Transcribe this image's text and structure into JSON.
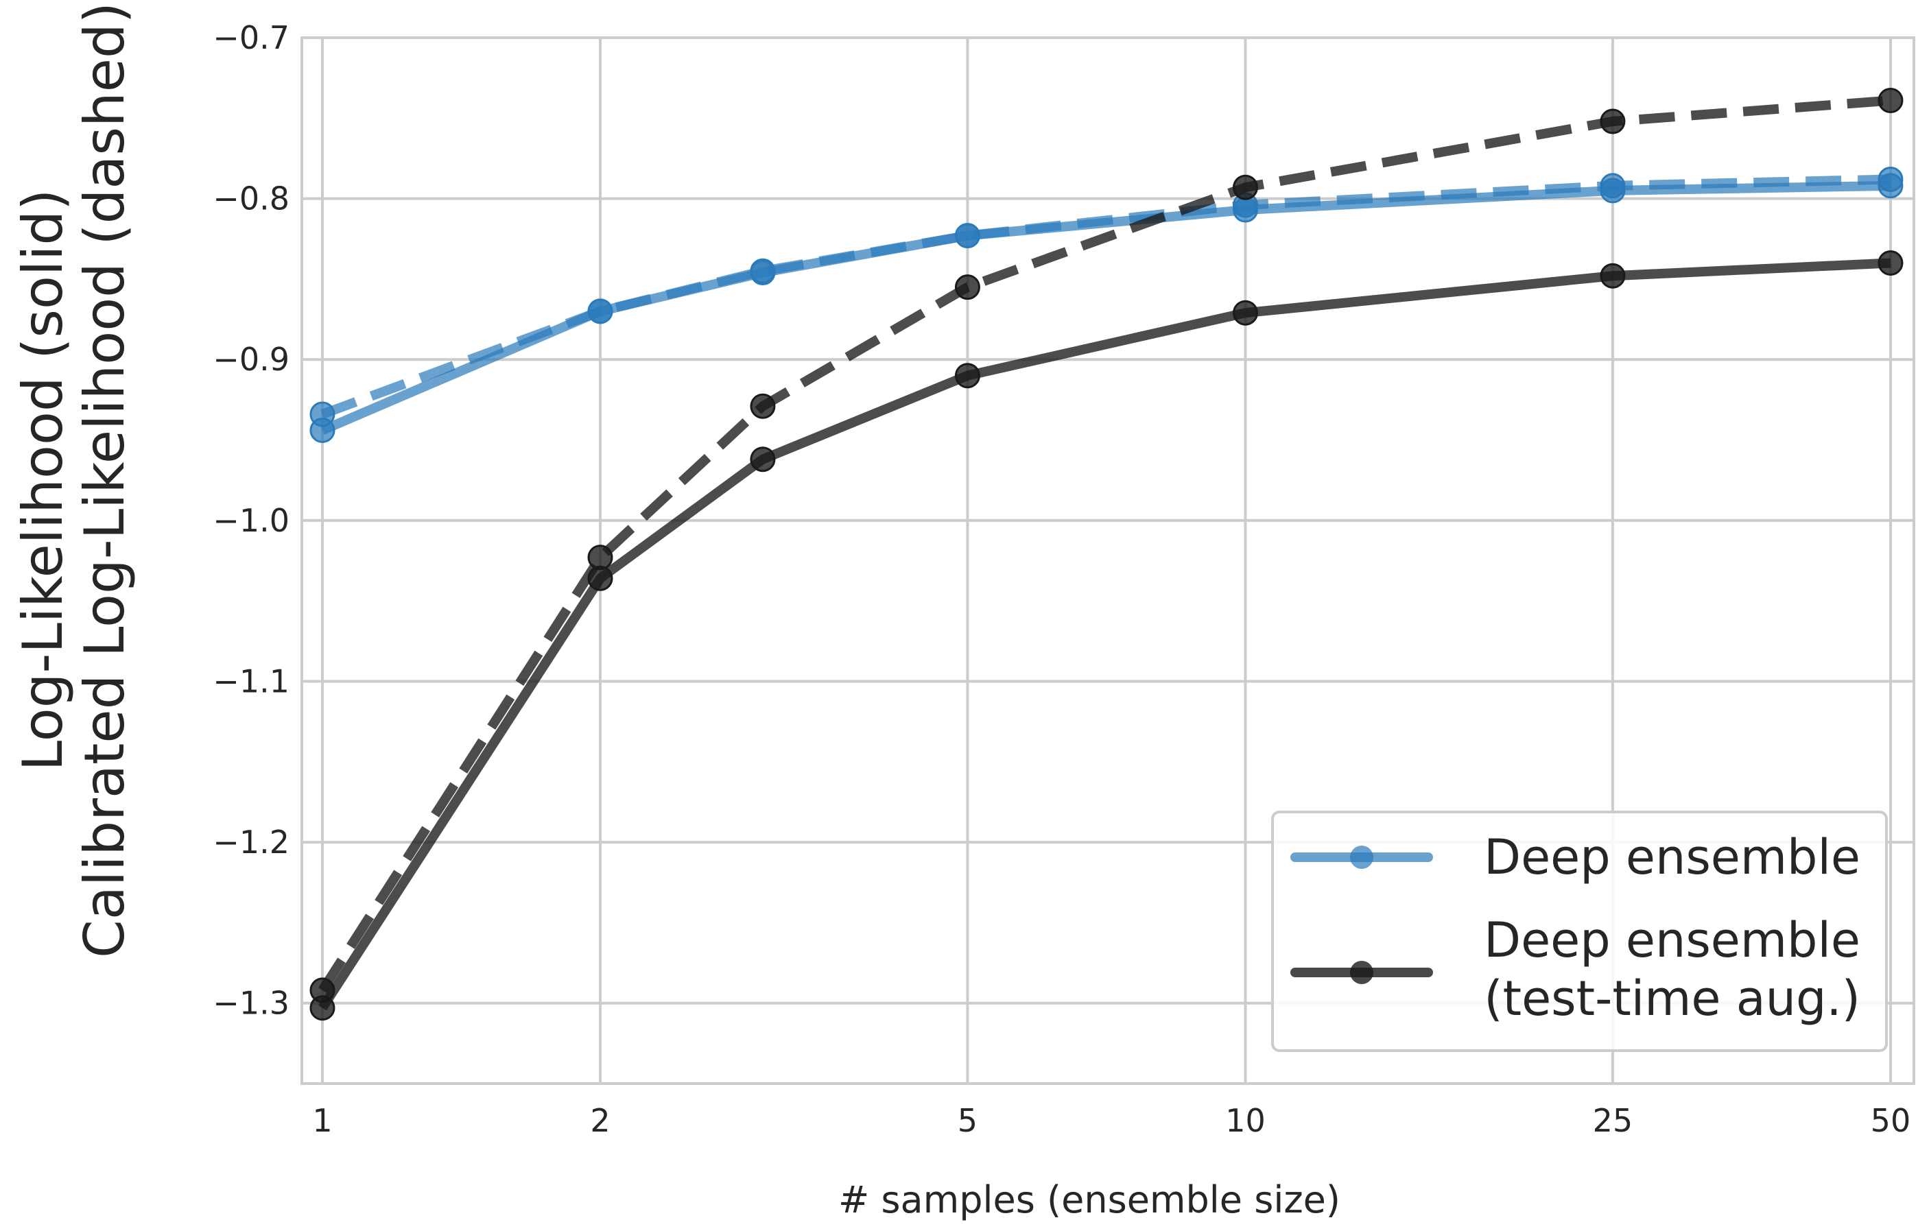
{
  "chart_data": {
    "type": "line",
    "xlabel": "# samples (ensemble size)",
    "ylabel_lines": [
      "Log-Likelihood (solid)",
      "Calibrated Log-Likelihood (dashed)"
    ],
    "x_scale": "log",
    "x_ticks": [
      1,
      2,
      5,
      10,
      25,
      50
    ],
    "y_ticks": [
      -0.7,
      -0.8,
      -0.9,
      -1.0,
      -1.1,
      -1.2,
      -1.3
    ],
    "y_tick_labels": [
      "−0.7",
      "−0.8",
      "−0.9",
      "−1.0",
      "−1.1",
      "−1.2",
      "−1.3"
    ],
    "xlim": [
      0.95,
      53
    ],
    "ylim": [
      -1.35,
      -0.7
    ],
    "grid": true,
    "legend_position": "lower-right",
    "series": [
      {
        "name": "Deep ensemble",
        "color": "#2b7bba",
        "x": [
          1,
          2,
          3,
          5,
          10,
          25,
          50
        ],
        "solid": [
          -0.944,
          -0.87,
          -0.846,
          -0.823,
          -0.807,
          -0.795,
          -0.792
        ],
        "dashed": [
          -0.934,
          -0.87,
          -0.845,
          -0.823,
          -0.804,
          -0.792,
          -0.788
        ]
      },
      {
        "name": "Deep ensemble\n(test-time aug.)",
        "legend_lines": [
          "Deep ensemble",
          "(test-time aug.)"
        ],
        "color": "#1a1a1a",
        "x": [
          1,
          2,
          3,
          5,
          10,
          25,
          50
        ],
        "solid": [
          -1.303,
          -1.036,
          -0.962,
          -0.91,
          -0.871,
          -0.848,
          -0.84
        ],
        "dashed": [
          -1.292,
          -1.023,
          -0.929,
          -0.855,
          -0.793,
          -0.752,
          -0.739
        ]
      }
    ]
  }
}
